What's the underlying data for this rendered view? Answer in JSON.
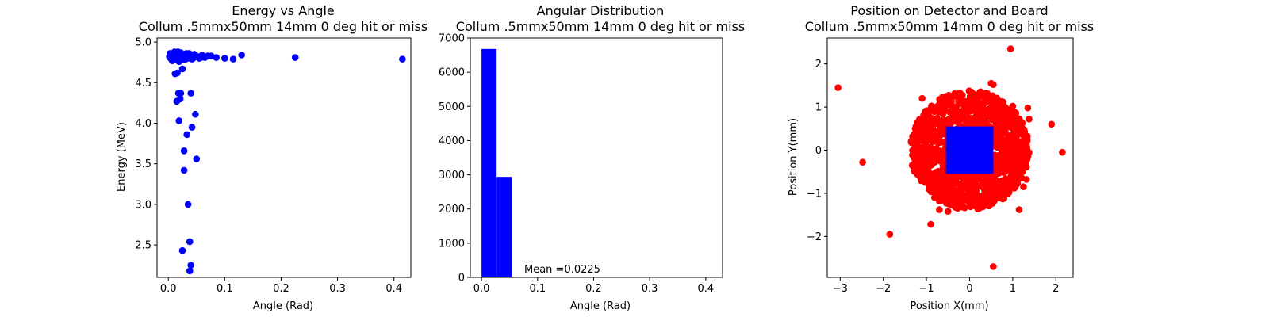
{
  "chart_data": [
    {
      "type": "scatter",
      "title": "Energy vs Angle",
      "subtitle": "Collum .5mmx50mm 14mm 0 deg hit or miss",
      "xlabel": "Angle (Rad)",
      "ylabel": "Energy (MeV)",
      "xlim": [
        -0.02,
        0.43
      ],
      "ylim": [
        2.1,
        5.05
      ],
      "xticks": [
        "0.0",
        "0.1",
        "0.2",
        "0.3",
        "0.4"
      ],
      "yticks": [
        "2.5",
        "3.0",
        "3.5",
        "4.0",
        "4.5",
        "5.0"
      ],
      "color": "#0000ff",
      "grid": false,
      "series": [
        {
          "x": [
            0.002,
            0.004,
            0.006,
            0.008,
            0.01,
            0.012,
            0.014,
            0.016,
            0.018,
            0.02,
            0.022,
            0.024,
            0.026,
            0.028,
            0.03,
            0.032,
            0.035,
            0.038,
            0.042,
            0.046,
            0.05,
            0.055,
            0.06,
            0.065,
            0.07,
            0.003,
            0.007,
            0.011,
            0.015,
            0.019,
            0.023,
            0.027,
            0.031,
            0.036,
            0.041,
            0.005,
            0.009,
            0.013,
            0.017,
            0.021,
            0.025,
            0.029,
            0.033,
            0.037,
            0.044,
            0.048,
            0.052,
            0.058,
            0.076,
            0.085,
            0.1,
            0.115,
            0.13,
            0.225,
            0.415,
            0.012,
            0.016,
            0.025,
            0.018,
            0.021,
            0.04,
            0.015,
            0.048,
            0.022,
            0.019,
            0.042,
            0.033,
            0.028,
            0.05,
            0.028,
            0.035,
            0.038,
            0.04,
            0.025,
            0.038
          ],
          "y": [
            4.82,
            4.8,
            4.84,
            4.78,
            4.86,
            4.81,
            4.79,
            4.85,
            4.83,
            4.8,
            4.87,
            4.82,
            4.78,
            4.84,
            4.81,
            4.86,
            4.8,
            4.83,
            4.79,
            4.85,
            4.82,
            4.8,
            4.84,
            4.81,
            4.83,
            4.86,
            4.77,
            4.88,
            4.8,
            4.76,
            4.84,
            4.82,
            4.79,
            4.85,
            4.81,
            4.83,
            4.81,
            4.78,
            4.88,
            4.82,
            4.85,
            4.8,
            4.83,
            4.86,
            4.8,
            4.84,
            4.82,
            4.81,
            4.83,
            4.81,
            4.8,
            4.79,
            4.84,
            4.81,
            4.79,
            4.61,
            4.62,
            4.67,
            4.37,
            4.3,
            4.37,
            4.27,
            4.11,
            4.37,
            4.03,
            3.95,
            3.86,
            3.66,
            3.56,
            3.42,
            3.0,
            2.54,
            2.25,
            2.43,
            2.18
          ]
        }
      ]
    },
    {
      "type": "bar",
      "title": "Angular Distribution",
      "subtitle": "Collum .5mmx50mm 14mm 0 deg hit or miss",
      "xlabel": "Angle (Rad)",
      "ylabel": "",
      "xlim": [
        -0.02,
        0.43
      ],
      "ylim": [
        0,
        7000
      ],
      "xticks": [
        "0.0",
        "0.1",
        "0.2",
        "0.3",
        "0.4"
      ],
      "yticks": [
        "0",
        "1000",
        "2000",
        "3000",
        "4000",
        "5000",
        "6000",
        "7000"
      ],
      "color": "#0000ff",
      "grid": false,
      "bins": [
        {
          "x0": 0.0,
          "x1": 0.027,
          "value": 6680
        },
        {
          "x0": 0.027,
          "x1": 0.054,
          "value": 2940
        }
      ],
      "annotation": "Mean =0.0225"
    },
    {
      "type": "scatter",
      "title": "Position on Detector and Board",
      "subtitle": "Collum .5mmx50mm 14mm 0 deg hit or miss",
      "xlabel": "Position X(mm)",
      "ylabel": "Position Y(mm)",
      "xlim": [
        -3.3,
        2.4
      ],
      "ylim": [
        -2.95,
        2.6
      ],
      "xticks": [
        "−3",
        "−2",
        "−1",
        "0",
        "1",
        "2"
      ],
      "yticks": [
        "−2",
        "−1",
        "0",
        "1",
        "2"
      ],
      "grid": false,
      "series": [
        {
          "color": "#ff0000",
          "cloud_center": [
            0,
            0
          ],
          "cloud_radius": 1.38,
          "x": [
            -3.05,
            -2.48,
            -1.85,
            -0.9,
            0.55,
            0.95,
            1.9,
            2.15,
            0.55,
            0.5,
            -1.1,
            1.35,
            1.38,
            1.25,
            -0.5,
            -0.7,
            1.32,
            1.15,
            1.0,
            -1.2
          ],
          "y": [
            1.45,
            -0.28,
            -1.95,
            -1.72,
            -2.7,
            2.35,
            0.6,
            -0.05,
            1.52,
            1.55,
            1.2,
            0.98,
            0.72,
            -0.85,
            -1.42,
            -1.38,
            -0.68,
            -1.38,
            1.02,
            -0.38
          ]
        },
        {
          "color": "#0000ff",
          "box": [
            -0.55,
            0.55,
            -0.55,
            0.55
          ]
        }
      ]
    }
  ]
}
